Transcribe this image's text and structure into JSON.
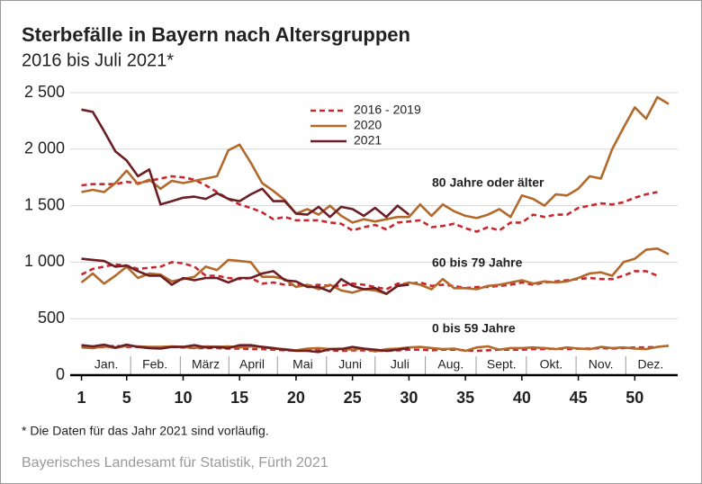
{
  "chart_data": {
    "type": "line",
    "title": "Sterbefälle in Bayern nach Altersgruppen",
    "subtitle": "2016 bis Juli 2021*",
    "footnote": "* Die Daten für das Jahr 2021 sind vorläufig.",
    "source": "Bayerisches Landesamt für Statistik, Fürth 2021",
    "x": [
      1,
      2,
      3,
      4,
      5,
      6,
      7,
      8,
      9,
      10,
      11,
      12,
      13,
      14,
      15,
      16,
      17,
      18,
      19,
      20,
      21,
      22,
      23,
      24,
      25,
      26,
      27,
      28,
      29,
      30,
      31,
      32,
      33,
      34,
      35,
      36,
      37,
      38,
      39,
      40,
      41,
      42,
      43,
      44,
      45,
      46,
      47,
      48,
      49,
      50,
      51,
      52,
      53
    ],
    "xlim": [
      0,
      53.8
    ],
    "xticks": [
      1,
      5,
      10,
      15,
      20,
      25,
      30,
      35,
      40,
      45,
      50
    ],
    "ylim": [
      0,
      2500
    ],
    "yticks": [
      0,
      500,
      {
        "value": 1000,
        "label": "1 000"
      },
      {
        "value": 1500,
        "label": "1 500"
      },
      {
        "value": 2000,
        "label": "2 000"
      },
      {
        "value": 2500,
        "label": "2 500"
      }
    ],
    "grid": true,
    "months": [
      {
        "label": "Jan.",
        "x": 3.2
      },
      {
        "label": "Feb.",
        "x": 7.5
      },
      {
        "label": "März",
        "x": 12
      },
      {
        "label": "April",
        "x": 16.1
      },
      {
        "label": "Mai",
        "x": 20.6
      },
      {
        "label": "Juni",
        "x": 24.8
      },
      {
        "label": "Juli",
        "x": 29.2
      },
      {
        "label": "Aug.",
        "x": 33.7
      },
      {
        "label": "Sept.",
        "x": 38.2
      },
      {
        "label": "Okt.",
        "x": 42.6
      },
      {
        "label": "Nov.",
        "x": 47
      },
      {
        "label": "Dez.",
        "x": 51.4
      }
    ],
    "groups": [
      "80 Jahre oder älter",
      "60 bis 79 Jahre",
      "0 bis 59 Jahre"
    ],
    "series": [
      {
        "name": "2016 - 2019",
        "color": "#c8282d",
        "dashed": true,
        "groups": [
          [
            1680,
            1690,
            1690,
            1690,
            1710,
            1700,
            1720,
            1740,
            1760,
            1750,
            1730,
            1680,
            1620,
            1560,
            1510,
            1480,
            1440,
            1380,
            1400,
            1370,
            1370,
            1370,
            1350,
            1340,
            1280,
            1310,
            1330,
            1290,
            1350,
            1360,
            1370,
            1310,
            1320,
            1340,
            1300,
            1270,
            1310,
            1280,
            1350,
            1350,
            1420,
            1400,
            1420,
            1420,
            1480,
            1500,
            1520,
            1510,
            1530,
            1570,
            1600,
            1620
          ],
          [
            890,
            940,
            960,
            980,
            970,
            940,
            950,
            960,
            1000,
            990,
            960,
            880,
            880,
            860,
            850,
            860,
            810,
            820,
            800,
            800,
            790,
            800,
            790,
            790,
            810,
            800,
            780,
            760,
            810,
            810,
            820,
            790,
            800,
            790,
            770,
            780,
            780,
            790,
            800,
            820,
            800,
            820,
            830,
            840,
            850,
            860,
            850,
            850,
            880,
            920,
            920,
            880
          ],
          [
            250,
            240,
            250,
            260,
            250,
            250,
            245,
            250,
            250,
            245,
            240,
            240,
            240,
            235,
            235,
            230,
            230,
            225,
            220,
            220,
            220,
            225,
            220,
            215,
            220,
            220,
            215,
            215,
            220,
            225,
            225,
            220,
            225,
            225,
            220,
            215,
            220,
            225,
            225,
            225,
            230,
            230,
            235,
            230,
            235,
            235,
            240,
            235,
            240,
            245,
            245,
            250
          ]
        ]
      },
      {
        "name": "2020",
        "color": "#b3692a",
        "dashed": false,
        "groups": [
          [
            1620,
            1640,
            1620,
            1700,
            1810,
            1690,
            1730,
            1650,
            1720,
            1700,
            1720,
            1740,
            1760,
            1990,
            2040,
            1880,
            1700,
            1630,
            1550,
            1430,
            1470,
            1420,
            1500,
            1410,
            1350,
            1380,
            1360,
            1380,
            1400,
            1400,
            1510,
            1410,
            1510,
            1450,
            1410,
            1390,
            1420,
            1470,
            1400,
            1590,
            1560,
            1500,
            1600,
            1590,
            1650,
            1760,
            1740,
            2000,
            2190,
            2370,
            2270,
            2460,
            2400
          ],
          [
            820,
            900,
            810,
            880,
            960,
            860,
            900,
            890,
            830,
            850,
            870,
            960,
            930,
            1020,
            1010,
            1000,
            870,
            870,
            850,
            780,
            800,
            760,
            800,
            750,
            730,
            760,
            750,
            720,
            790,
            820,
            800,
            760,
            850,
            770,
            770,
            760,
            790,
            800,
            820,
            840,
            810,
            830,
            820,
            830,
            860,
            900,
            910,
            880,
            1000,
            1030,
            1110,
            1120,
            1070
          ],
          [
            245,
            240,
            255,
            240,
            260,
            255,
            250,
            250,
            255,
            250,
            240,
            255,
            250,
            255,
            245,
            255,
            250,
            235,
            230,
            220,
            235,
            240,
            230,
            235,
            225,
            235,
            210,
            230,
            235,
            245,
            250,
            240,
            230,
            235,
            215,
            245,
            255,
            225,
            240,
            240,
            245,
            240,
            230,
            245,
            235,
            230,
            250,
            240,
            245,
            235,
            230,
            250,
            260
          ]
        ]
      },
      {
        "name": "2021",
        "color": "#6b1f24",
        "dashed": false,
        "groups": [
          [
            2350,
            2330,
            2160,
            1980,
            1900,
            1760,
            1820,
            1510,
            1540,
            1570,
            1580,
            1560,
            1610,
            1560,
            1540,
            1600,
            1650,
            1540,
            1540,
            1430,
            1420,
            1490,
            1400,
            1490,
            1470,
            1410,
            1480,
            1400,
            1500,
            1420
          ],
          [
            1030,
            1020,
            1010,
            960,
            970,
            920,
            880,
            880,
            800,
            860,
            840,
            860,
            860,
            820,
            860,
            860,
            900,
            920,
            840,
            830,
            780,
            780,
            740,
            850,
            790,
            760,
            770,
            720,
            790,
            800
          ],
          [
            265,
            255,
            270,
            245,
            270,
            250,
            240,
            235,
            250,
            250,
            265,
            245,
            250,
            240,
            265,
            265,
            250,
            240,
            225,
            215,
            215,
            205,
            230,
            230,
            250,
            235,
            225,
            215,
            225,
            240
          ]
        ]
      }
    ]
  }
}
